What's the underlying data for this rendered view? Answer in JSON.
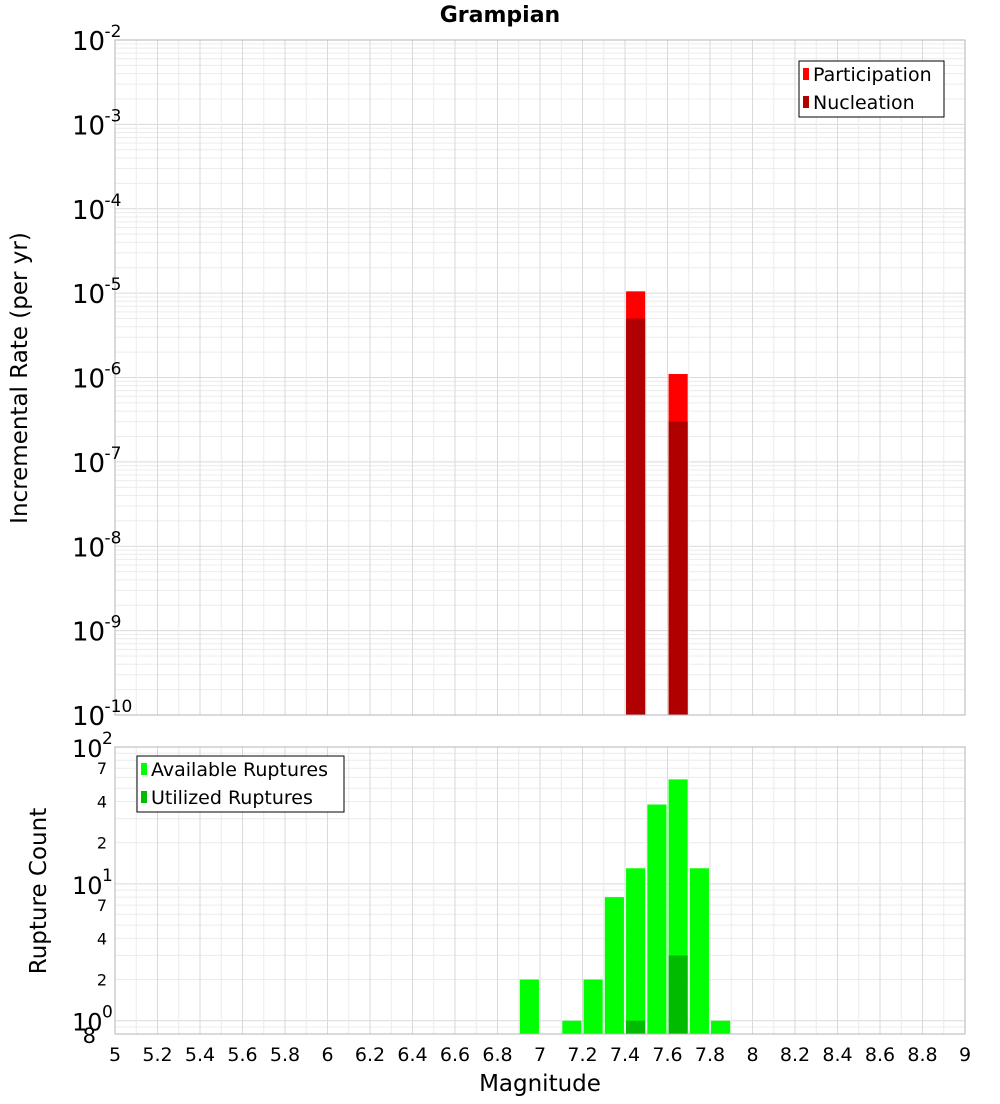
{
  "chart_data": [
    {
      "type": "bar",
      "title": "Grampian",
      "xlabel": "",
      "ylabel": "Incremental Rate (per yr)",
      "xlim": [
        5,
        9
      ],
      "ylim": [
        1e-10,
        0.01
      ],
      "yscale": "log",
      "grid": true,
      "legend_position": "top-right",
      "bar_width": 0.09,
      "x": [
        7.45,
        7.65
      ],
      "series": [
        {
          "name": "Participation",
          "color": "#ff0000",
          "values": [
            1.05e-05,
            1.1e-06
          ]
        },
        {
          "name": "Nucleation",
          "color": "#b00000",
          "values": [
            5e-06,
            3e-07
          ]
        }
      ],
      "y_tick_labels": [
        {
          "base": "10",
          "exp": "-2"
        },
        {
          "base": "10",
          "exp": "-3"
        },
        {
          "base": "10",
          "exp": "-4"
        },
        {
          "base": "10",
          "exp": "-5"
        },
        {
          "base": "10",
          "exp": "-6"
        },
        {
          "base": "10",
          "exp": "-7"
        },
        {
          "base": "10",
          "exp": "-8"
        },
        {
          "base": "10",
          "exp": "-9"
        },
        {
          "base": "10",
          "exp": "-10"
        }
      ]
    },
    {
      "type": "bar",
      "title": "",
      "xlabel": "Magnitude",
      "ylabel": "Rupture Count",
      "xlim": [
        5,
        9
      ],
      "ylim": [
        0.8,
        100
      ],
      "yscale": "log",
      "grid": true,
      "legend_position": "top-left",
      "bar_width": 0.09,
      "x": [
        6.95,
        7.15,
        7.25,
        7.35,
        7.45,
        7.55,
        7.65,
        7.75,
        7.85
      ],
      "series": [
        {
          "name": "Available Ruptures",
          "color": "#00ff00",
          "values": [
            2,
            1,
            2,
            8,
            13,
            38,
            58,
            13,
            1
          ]
        },
        {
          "name": "Utilized Ruptures",
          "color": "#00bb00",
          "values": [
            0,
            0,
            0,
            0,
            1,
            0,
            3,
            0,
            0
          ]
        }
      ],
      "y_tick_labels": [
        {
          "base": "10",
          "exp": "2"
        },
        {
          "base": "7",
          "exp": ""
        },
        {
          "base": "4",
          "exp": ""
        },
        {
          "base": "2",
          "exp": ""
        },
        {
          "base": "10",
          "exp": "1"
        },
        {
          "base": "7",
          "exp": ""
        },
        {
          "base": "4",
          "exp": ""
        },
        {
          "base": "2",
          "exp": ""
        },
        {
          "base": "10",
          "exp": "0"
        },
        {
          "base": "8",
          "exp": ""
        }
      ],
      "x_tick_labels": [
        "5",
        "5.2",
        "5.4",
        "5.6",
        "5.8",
        "6",
        "6.2",
        "6.4",
        "6.6",
        "6.8",
        "7",
        "7.2",
        "7.4",
        "7.6",
        "7.8",
        "8",
        "8.2",
        "8.4",
        "8.6",
        "8.8",
        "9"
      ]
    }
  ]
}
